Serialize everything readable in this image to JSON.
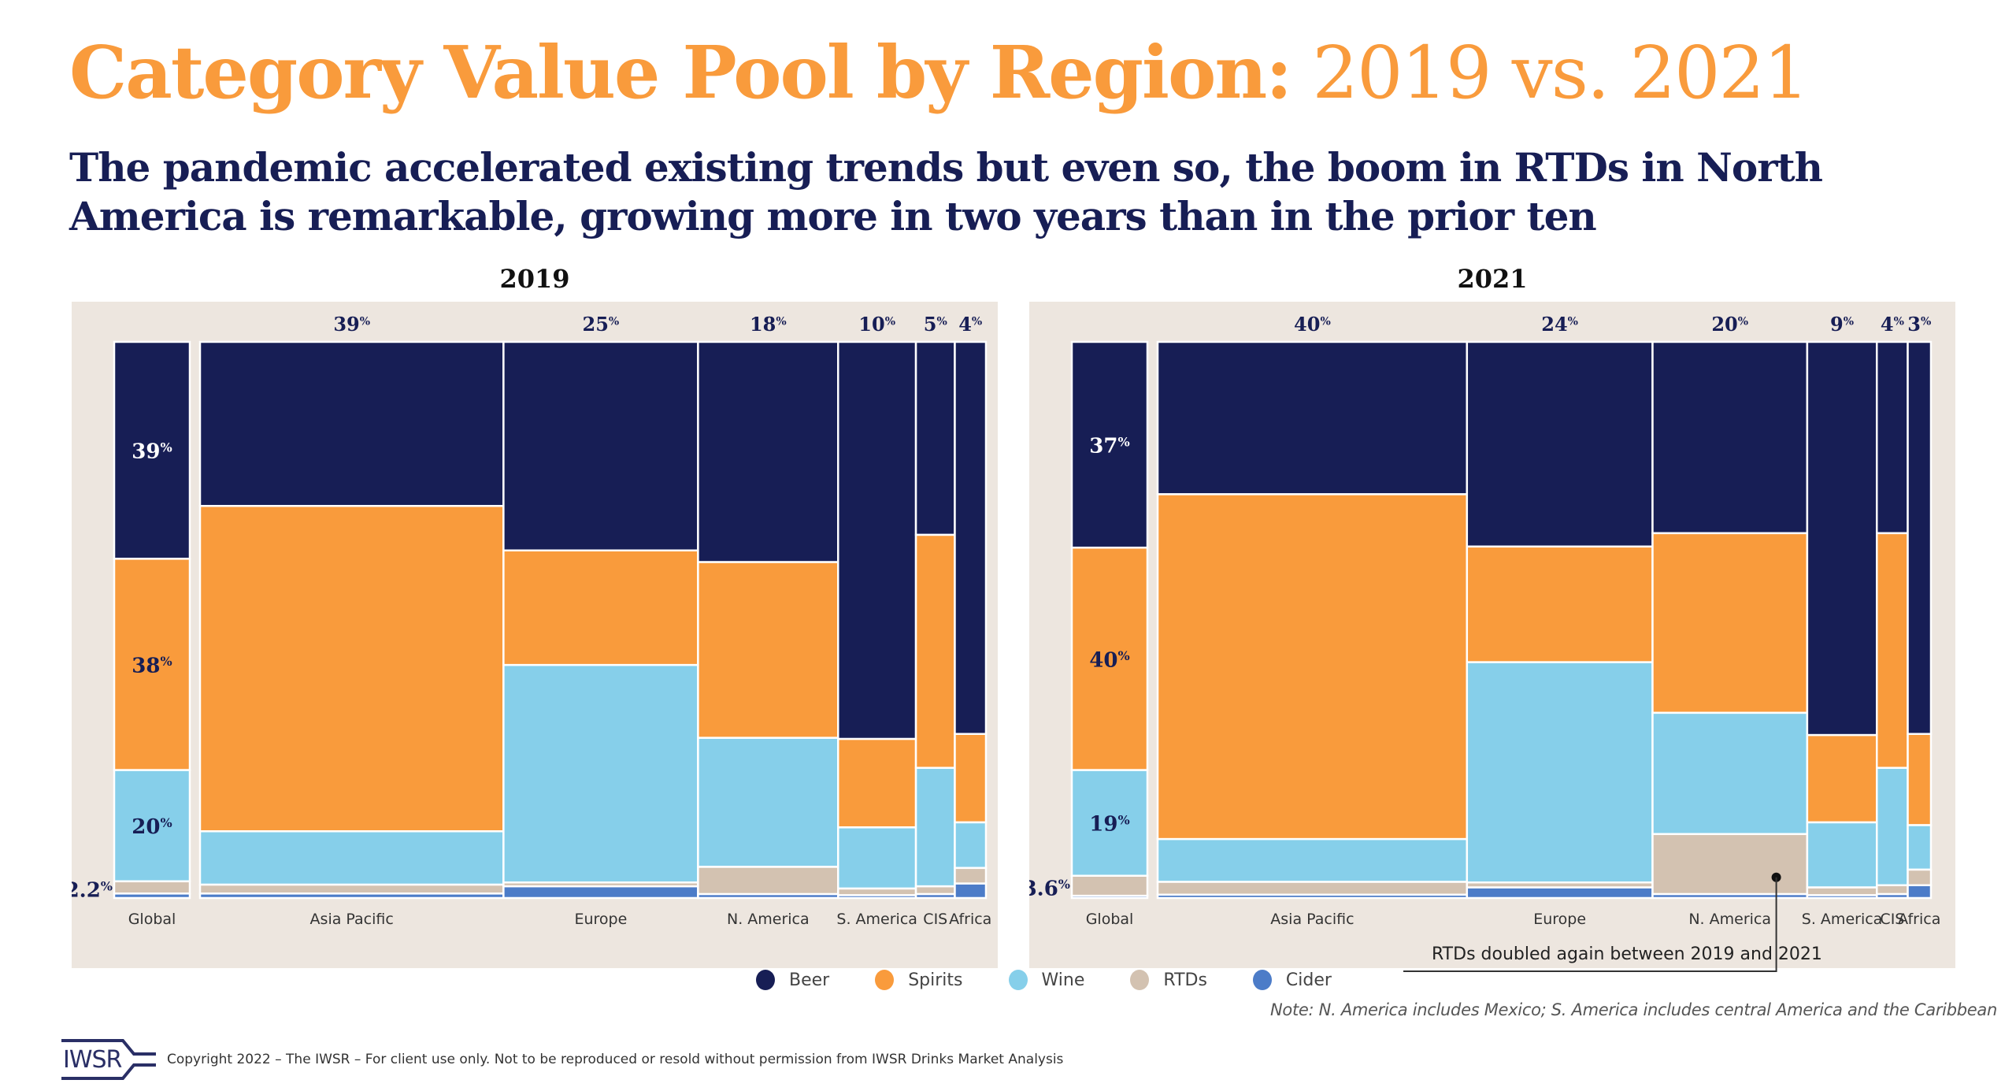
{
  "header": {
    "title_bold": "Category Value Pool by Region:",
    "title_light": " 2019 vs. 2021",
    "subtitle": "The pandemic accelerated existing trends but even so, the boom in RTDs in North America is remarkable, growing more in two years than in the prior ten"
  },
  "colors": {
    "Beer": "#171E55",
    "Spirits": "#F99B3C",
    "Wine": "#86CFEA",
    "RTDs": "#D3C2B1",
    "Cider": "#4C7CC8",
    "panel_bg": "#EDE6DF",
    "title": "#F99B3C",
    "text_dark": "#171E55"
  },
  "legend": [
    {
      "label": "Beer",
      "color": "#171E55"
    },
    {
      "label": "Spirits",
      "color": "#F99B3C"
    },
    {
      "label": "Wine",
      "color": "#86CFEA"
    },
    {
      "label": "RTDs",
      "color": "#D3C2B1"
    },
    {
      "label": "Cider",
      "color": "#4C7CC8"
    }
  ],
  "chart_data": [
    {
      "type": "mosaic",
      "title": "2019",
      "categories_stack": [
        "Beer",
        "Spirits",
        "Wine",
        "RTDs",
        "Cider"
      ],
      "global": {
        "label": "Global",
        "values": [
          39,
          38,
          20,
          2.2,
          0.8
        ],
        "labels": [
          "39%",
          "38%",
          "20%",
          "2.2%"
        ]
      },
      "regions": [
        {
          "label": "Asia Pacific",
          "share": 39,
          "share_label": "39%",
          "values": [
            29.5,
            58.5,
            9.6,
            1.6,
            0.8
          ]
        },
        {
          "label": "Europe",
          "share": 25,
          "share_label": "25%",
          "values": [
            37.5,
            20.6,
            39.1,
            0.7,
            2.1
          ]
        },
        {
          "label": "N. America",
          "share": 18,
          "share_label": "18%",
          "values": [
            39.6,
            31.6,
            23.2,
            4.9,
            0.7
          ]
        },
        {
          "label": "S. America",
          "share": 10,
          "share_label": "10%",
          "values": [
            71.4,
            15.9,
            11.0,
            1.2,
            0.5
          ]
        },
        {
          "label": "CIS",
          "share": 5,
          "share_label": "5%",
          "values": [
            34.7,
            41.9,
            21.3,
            1.4,
            0.7
          ]
        },
        {
          "label": "Africa",
          "share": 4,
          "share_label": "4%",
          "values": [
            70.5,
            15.9,
            8.2,
            2.8,
            2.6
          ]
        }
      ]
    },
    {
      "type": "mosaic",
      "title": "2021",
      "categories_stack": [
        "Beer",
        "Spirits",
        "Wine",
        "RTDs",
        "Cider"
      ],
      "global": {
        "label": "Global",
        "values": [
          37,
          40,
          19,
          3.6,
          0.4
        ],
        "labels": [
          "37%",
          "40%",
          "19%",
          "3.6%"
        ]
      },
      "regions": [
        {
          "label": "Asia Pacific",
          "share": 40,
          "share_label": "40%",
          "values": [
            27.4,
            62.0,
            7.7,
            2.3,
            0.6
          ]
        },
        {
          "label": "Europe",
          "share": 24,
          "share_label": "24%",
          "values": [
            36.8,
            20.8,
            39.6,
            0.9,
            1.9
          ]
        },
        {
          "label": "N. America",
          "share": 20,
          "share_label": "20%",
          "values": [
            34.4,
            32.3,
            21.8,
            10.8,
            0.7
          ]
        },
        {
          "label": "S. America",
          "share": 9,
          "share_label": "9%",
          "values": [
            70.7,
            15.7,
            11.7,
            1.4,
            0.5
          ]
        },
        {
          "label": "CIS",
          "share": 4,
          "share_label": "4%",
          "values": [
            34.4,
            42.2,
            21.1,
            1.6,
            0.7
          ]
        },
        {
          "label": "Africa",
          "share": 3,
          "share_label": "3%",
          "values": [
            70.5,
            16.4,
            8.0,
            2.8,
            2.3
          ]
        }
      ],
      "annotation": {
        "text": "RTDs doubled again between 2019 and 2021",
        "target_region": "N. America",
        "target_category": "RTDs"
      }
    }
  ],
  "note": "Note: N. America includes Mexico; S. America includes central America and the Caribbean",
  "footer": {
    "logo_text": "IWSR",
    "copyright": "Copyright 2022 – The IWSR – For client use only. Not to be reproduced or resold without permission from IWSR Drinks Market Analysis"
  }
}
